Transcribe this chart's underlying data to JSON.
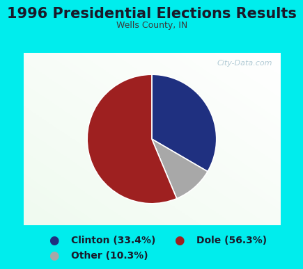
{
  "title": "1996 Presidential Elections Results",
  "subtitle": "Wells County, IN",
  "slices": [
    33.4,
    10.3,
    56.3
  ],
  "labels": [
    "Clinton (33.4%)",
    "Dole (56.3%)",
    "Other (10.3%)"
  ],
  "colors": [
    "#1f3080",
    "#9e2020",
    "#a8a8a8"
  ],
  "slice_colors": [
    "#1f3080",
    "#a8a8a8",
    "#9e2020"
  ],
  "background_outer": "#00eded",
  "background_inner_tl": "#e8f5e9",
  "background_inner_br": "#ffffff",
  "watermark": "City-Data.com",
  "title_fontsize": 15,
  "subtitle_fontsize": 9,
  "legend_fontsize": 10,
  "startangle": 90
}
